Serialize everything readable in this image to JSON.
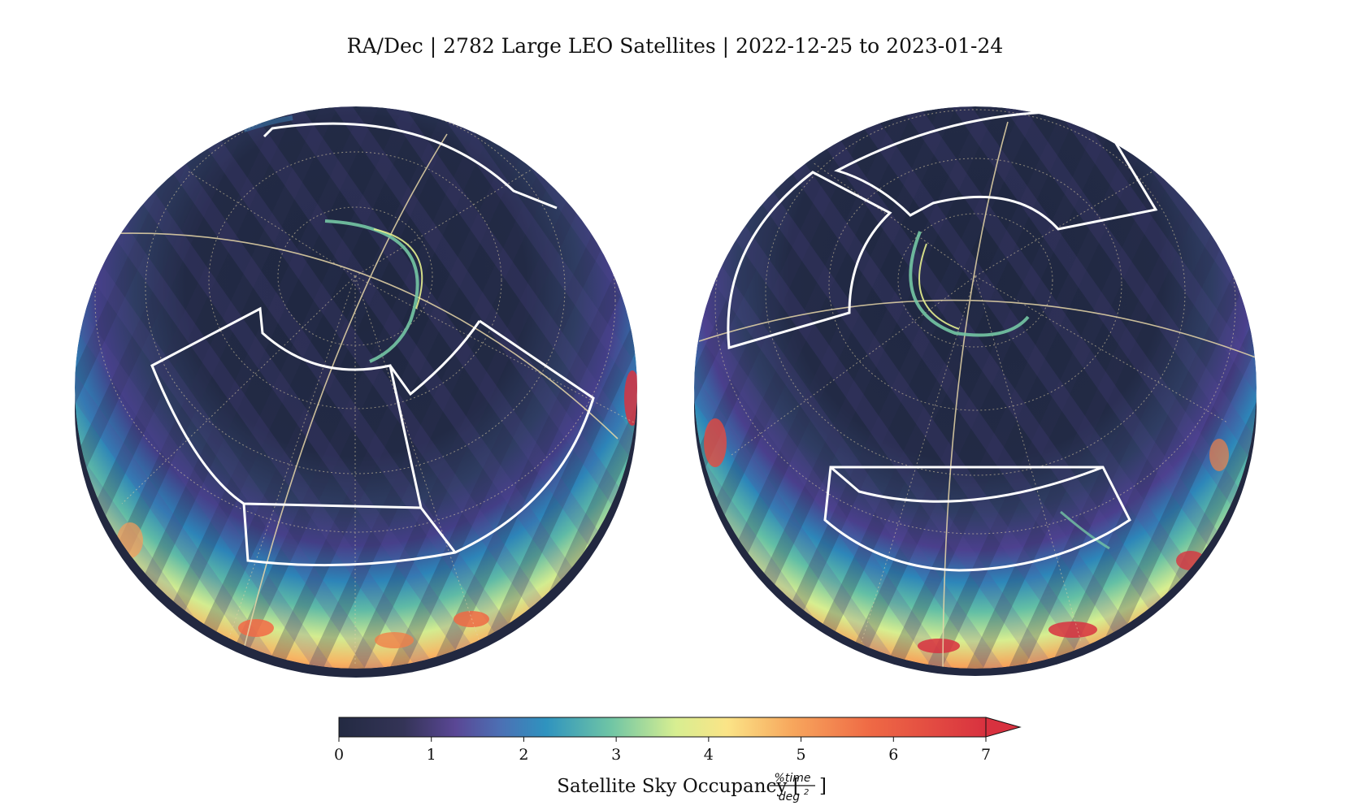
{
  "title": "RA/Dec | 2782 Large LEO Satellites | 2022-12-25 to 2023-01-24",
  "chart_data": {
    "type": "heatmap",
    "projection": "orthographic",
    "coordinate_system": "RA/Dec",
    "panels": 2,
    "colorbar": {
      "range": [
        0,
        7
      ],
      "ticks": [
        "0",
        "1",
        "2",
        "3",
        "4",
        "5",
        "6",
        "7"
      ],
      "extend": "max",
      "colormap": "Spectral_r",
      "label_prefix": "Satellite Sky Occupancy [",
      "label_unit_numerator": "%time",
      "label_unit_denominator": "deg",
      "label_unit_exponent": "2",
      "label_suffix": "]"
    },
    "colors": {
      "low": "#232a42",
      "mid_low": "#6a4fa1",
      "mid": "#2f8fbf",
      "mid_high": "#74c6a4",
      "yellow": "#e6f08e",
      "orange": "#f4894f",
      "high": "#d8333f",
      "outline": "#ffffff",
      "graticule": "#e8d7a8"
    }
  }
}
